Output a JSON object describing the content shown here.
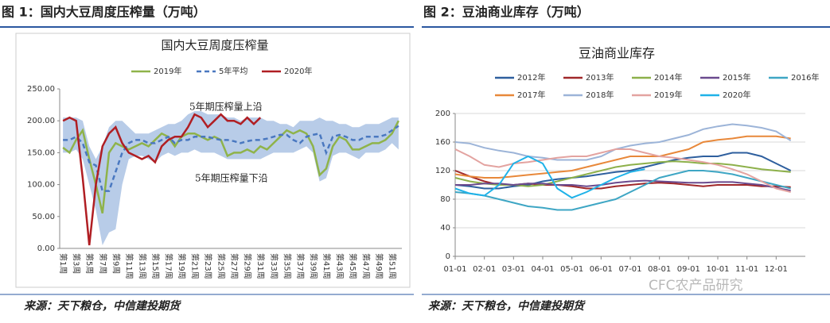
{
  "header_left": "图 1：国内大豆周度压榨量（万吨）",
  "header_right": "图 2：豆油商业库存（万吨）",
  "source_left": "来源：天下粮仓，中信建投期货",
  "source_right": "来源：天下粮仓，中信建投期货",
  "watermark": "CFC农产品研究",
  "chart_data": [
    {
      "type": "line",
      "title": "国内大豆周度压榨量",
      "categories": [
        "第1周",
        null,
        "第3周",
        null,
        "第5周",
        null,
        "第7周",
        null,
        "第9周",
        null,
        "第11周",
        null,
        "第13周",
        null,
        "第15周",
        null,
        "第17周",
        null,
        "第19周",
        null,
        "第21周",
        null,
        "第23周",
        null,
        "第25周",
        null,
        "第27周",
        null,
        "第29周",
        null,
        "第31周",
        null,
        "第33周",
        null,
        "第35周",
        null,
        "第37周",
        null,
        "第39周",
        null,
        "第41周",
        null,
        "第43周",
        null,
        "第45周",
        null,
        "第47周",
        null,
        "第49周",
        null,
        "第51周",
        null
      ],
      "series": [
        {
          "name": "2019年",
          "color": "#8fb34a",
          "style": "solid",
          "values": [
            158,
            150,
            170,
            185,
            140,
            100,
            55,
            150,
            165,
            160,
            155,
            160,
            165,
            160,
            170,
            180,
            175,
            160,
            175,
            180,
            180,
            175,
            170,
            175,
            170,
            145,
            150,
            150,
            155,
            150,
            160,
            155,
            165,
            175,
            185,
            180,
            185,
            180,
            160,
            115,
            125,
            160,
            175,
            170,
            155,
            155,
            160,
            165,
            165,
            170,
            180,
            200
          ]
        },
        {
          "name": "5年平均",
          "color": "#4a78c0",
          "style": "dashed",
          "values": [
            170,
            170,
            175,
            165,
            135,
            130,
            90,
            90,
            120,
            150,
            165,
            170,
            170,
            165,
            165,
            170,
            175,
            165,
            170,
            170,
            175,
            175,
            175,
            172,
            170,
            170,
            168,
            165,
            168,
            170,
            170,
            172,
            175,
            178,
            178,
            170,
            165,
            175,
            178,
            180,
            150,
            175,
            178,
            175,
            170,
            170,
            175,
            175,
            175,
            178,
            185,
            192
          ]
        },
        {
          "name": "2020年",
          "color": "#b01e23",
          "style": "solid",
          "values": [
            200,
            205,
            200,
            110,
            5,
            100,
            160,
            180,
            190,
            165,
            150,
            145,
            140,
            145,
            135,
            160,
            170,
            175,
            175,
            190,
            210,
            205,
            190,
            200,
            210,
            200,
            200,
            195,
            205,
            195,
            205,
            null,
            null,
            null,
            null,
            null,
            null,
            null,
            null,
            null,
            null,
            null,
            null,
            null,
            null,
            null,
            null,
            null,
            null,
            null,
            null,
            null
          ]
        }
      ],
      "band": {
        "color": "#b8cce8",
        "upper": [
          205,
          205,
          205,
          200,
          160,
          140,
          160,
          190,
          200,
          200,
          190,
          180,
          180,
          180,
          185,
          190,
          195,
          195,
          200,
          210,
          215,
          215,
          210,
          210,
          210,
          205,
          205,
          200,
          205,
          205,
          205,
          200,
          200,
          195,
          195,
          190,
          200,
          200,
          200,
          205,
          200,
          200,
          195,
          195,
          190,
          190,
          195,
          195,
          195,
          200,
          205,
          205
        ],
        "lower": [
          150,
          150,
          155,
          140,
          100,
          60,
          5,
          25,
          30,
          100,
          140,
          145,
          145,
          140,
          135,
          145,
          150,
          145,
          150,
          150,
          155,
          150,
          150,
          150,
          145,
          140,
          140,
          140,
          140,
          140,
          140,
          145,
          150,
          150,
          150,
          150,
          155,
          160,
          150,
          105,
          110,
          145,
          150,
          150,
          145,
          140,
          150,
          150,
          150,
          155,
          165,
          155
        ]
      },
      "annotations": [
        "5年期压榨量上沿",
        "5年期压榨量下沿"
      ],
      "ylim": [
        0,
        250
      ],
      "yticks": [
        {
          "value": 0,
          "label": "0.00"
        },
        {
          "value": 50,
          "label": "50.00"
        },
        {
          "value": 100,
          "label": "100.00"
        },
        {
          "value": 150,
          "label": "150.00"
        },
        {
          "value": 200,
          "label": "200.00"
        },
        {
          "value": 250,
          "label": "250.00"
        }
      ],
      "grid": false
    },
    {
      "type": "line",
      "title": "豆油商业库存",
      "categories": [
        "01-01",
        null,
        "02-01",
        null,
        "03-01",
        null,
        "04-01",
        null,
        "05-01",
        null,
        "06-01",
        null,
        "07-01",
        null,
        "08-01",
        null,
        "09-01",
        null,
        "10-01",
        null,
        "11-01",
        null,
        "12-01",
        null
      ],
      "series": [
        {
          "name": "2012年",
          "color": "#2e5f9e",
          "values": [
            100,
            98,
            95,
            95,
            98,
            100,
            105,
            108,
            110,
            112,
            115,
            118,
            120,
            125,
            130,
            135,
            138,
            140,
            140,
            145,
            145,
            140,
            130,
            120
          ]
        },
        {
          "name": "2013年",
          "color": "#a0282a",
          "values": [
            120,
            112,
            105,
            100,
            100,
            102,
            100,
            100,
            98,
            95,
            95,
            98,
            100,
            102,
            103,
            102,
            100,
            98,
            100,
            100,
            100,
            98,
            98,
            97
          ]
        },
        {
          "name": "2014年",
          "color": "#8db04a",
          "values": [
            110,
            105,
            102,
            100,
            100,
            98,
            100,
            105,
            110,
            115,
            120,
            125,
            128,
            130,
            132,
            133,
            132,
            130,
            130,
            128,
            125,
            122,
            120,
            118
          ]
        },
        {
          "name": "2015年",
          "color": "#6a4a8e",
          "values": [
            100,
            100,
            102,
            102,
            100,
            102,
            102,
            100,
            100,
            98,
            100,
            103,
            105,
            106,
            105,
            104,
            103,
            103,
            104,
            104,
            102,
            100,
            96,
            92
          ]
        },
        {
          "name": "2016年",
          "color": "#3ea6c4",
          "values": [
            90,
            88,
            85,
            80,
            75,
            70,
            68,
            65,
            65,
            70,
            75,
            80,
            90,
            100,
            110,
            115,
            120,
            120,
            118,
            115,
            110,
            105,
            100,
            95
          ]
        },
        {
          "name": "2017年",
          "color": "#e8883a",
          "values": [
            115,
            112,
            110,
            110,
            112,
            114,
            116,
            118,
            120,
            125,
            130,
            135,
            140,
            140,
            140,
            145,
            150,
            160,
            163,
            165,
            168,
            168,
            168,
            165
          ]
        },
        {
          "name": "2018年",
          "color": "#9cb4d8",
          "values": [
            160,
            158,
            152,
            148,
            145,
            140,
            138,
            135,
            135,
            135,
            140,
            150,
            155,
            158,
            160,
            165,
            170,
            178,
            182,
            185,
            183,
            180,
            175,
            162
          ]
        },
        {
          "name": "2019年",
          "color": "#e3a3a0",
          "values": [
            150,
            140,
            128,
            125,
            130,
            132,
            135,
            138,
            140,
            140,
            145,
            150,
            150,
            145,
            140,
            138,
            135,
            132,
            128,
            122,
            115,
            105,
            95,
            90
          ]
        },
        {
          "name": "2020年",
          "color": "#1fb2e8",
          "values": [
            95,
            88,
            85,
            100,
            130,
            140,
            130,
            95,
            82,
            90,
            100,
            110,
            118,
            122,
            null,
            null,
            null,
            null,
            null,
            null,
            null,
            null,
            null,
            null
          ]
        }
      ],
      "ylim": [
        0,
        200
      ],
      "yticks": [
        0,
        40,
        80,
        120,
        160,
        200
      ],
      "grid": true
    }
  ]
}
